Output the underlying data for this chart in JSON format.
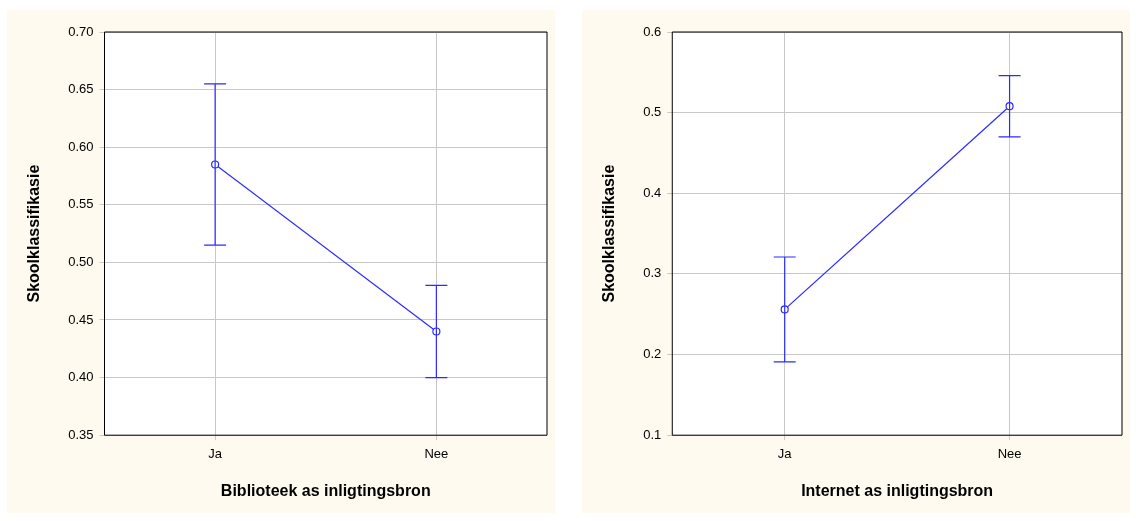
{
  "chart_data": [
    {
      "type": "line",
      "xlabel": "Biblioteek as inligtingsbron",
      "ylabel": "Skoolklassifikasie",
      "categories": [
        "Ja",
        "Nee"
      ],
      "values": [
        0.585,
        0.44
      ],
      "errors": [
        0.07,
        0.04
      ],
      "color": "#2b2bff",
      "marker": "circle",
      "line_style": "solid",
      "grid": true,
      "ylim": [
        0.35,
        0.7
      ],
      "yticks": [
        {
          "value": 0.35,
          "label": "0.35"
        },
        {
          "value": 0.4,
          "label": "0.40"
        },
        {
          "value": 0.45,
          "label": "0.45"
        },
        {
          "value": 0.5,
          "label": "0.50"
        },
        {
          "value": 0.55,
          "label": "0.55"
        },
        {
          "value": 0.6,
          "label": "0.60"
        },
        {
          "value": 0.65,
          "label": "0.65"
        },
        {
          "value": 0.7,
          "label": "0.70"
        }
      ]
    },
    {
      "type": "line",
      "xlabel": "Internet as inligtingsbron",
      "ylabel": "Skoolklassifikasie",
      "categories": [
        "Ja",
        "Nee"
      ],
      "values": [
        0.256,
        0.508
      ],
      "errors": [
        0.065,
        0.038
      ],
      "color": "#2b2bff",
      "marker": "circle",
      "line_style": "solid",
      "grid": true,
      "ylim": [
        0.1,
        0.6
      ],
      "yticks": [
        0.1,
        0.2,
        0.3,
        0.4,
        0.5,
        0.6
      ]
    }
  ]
}
